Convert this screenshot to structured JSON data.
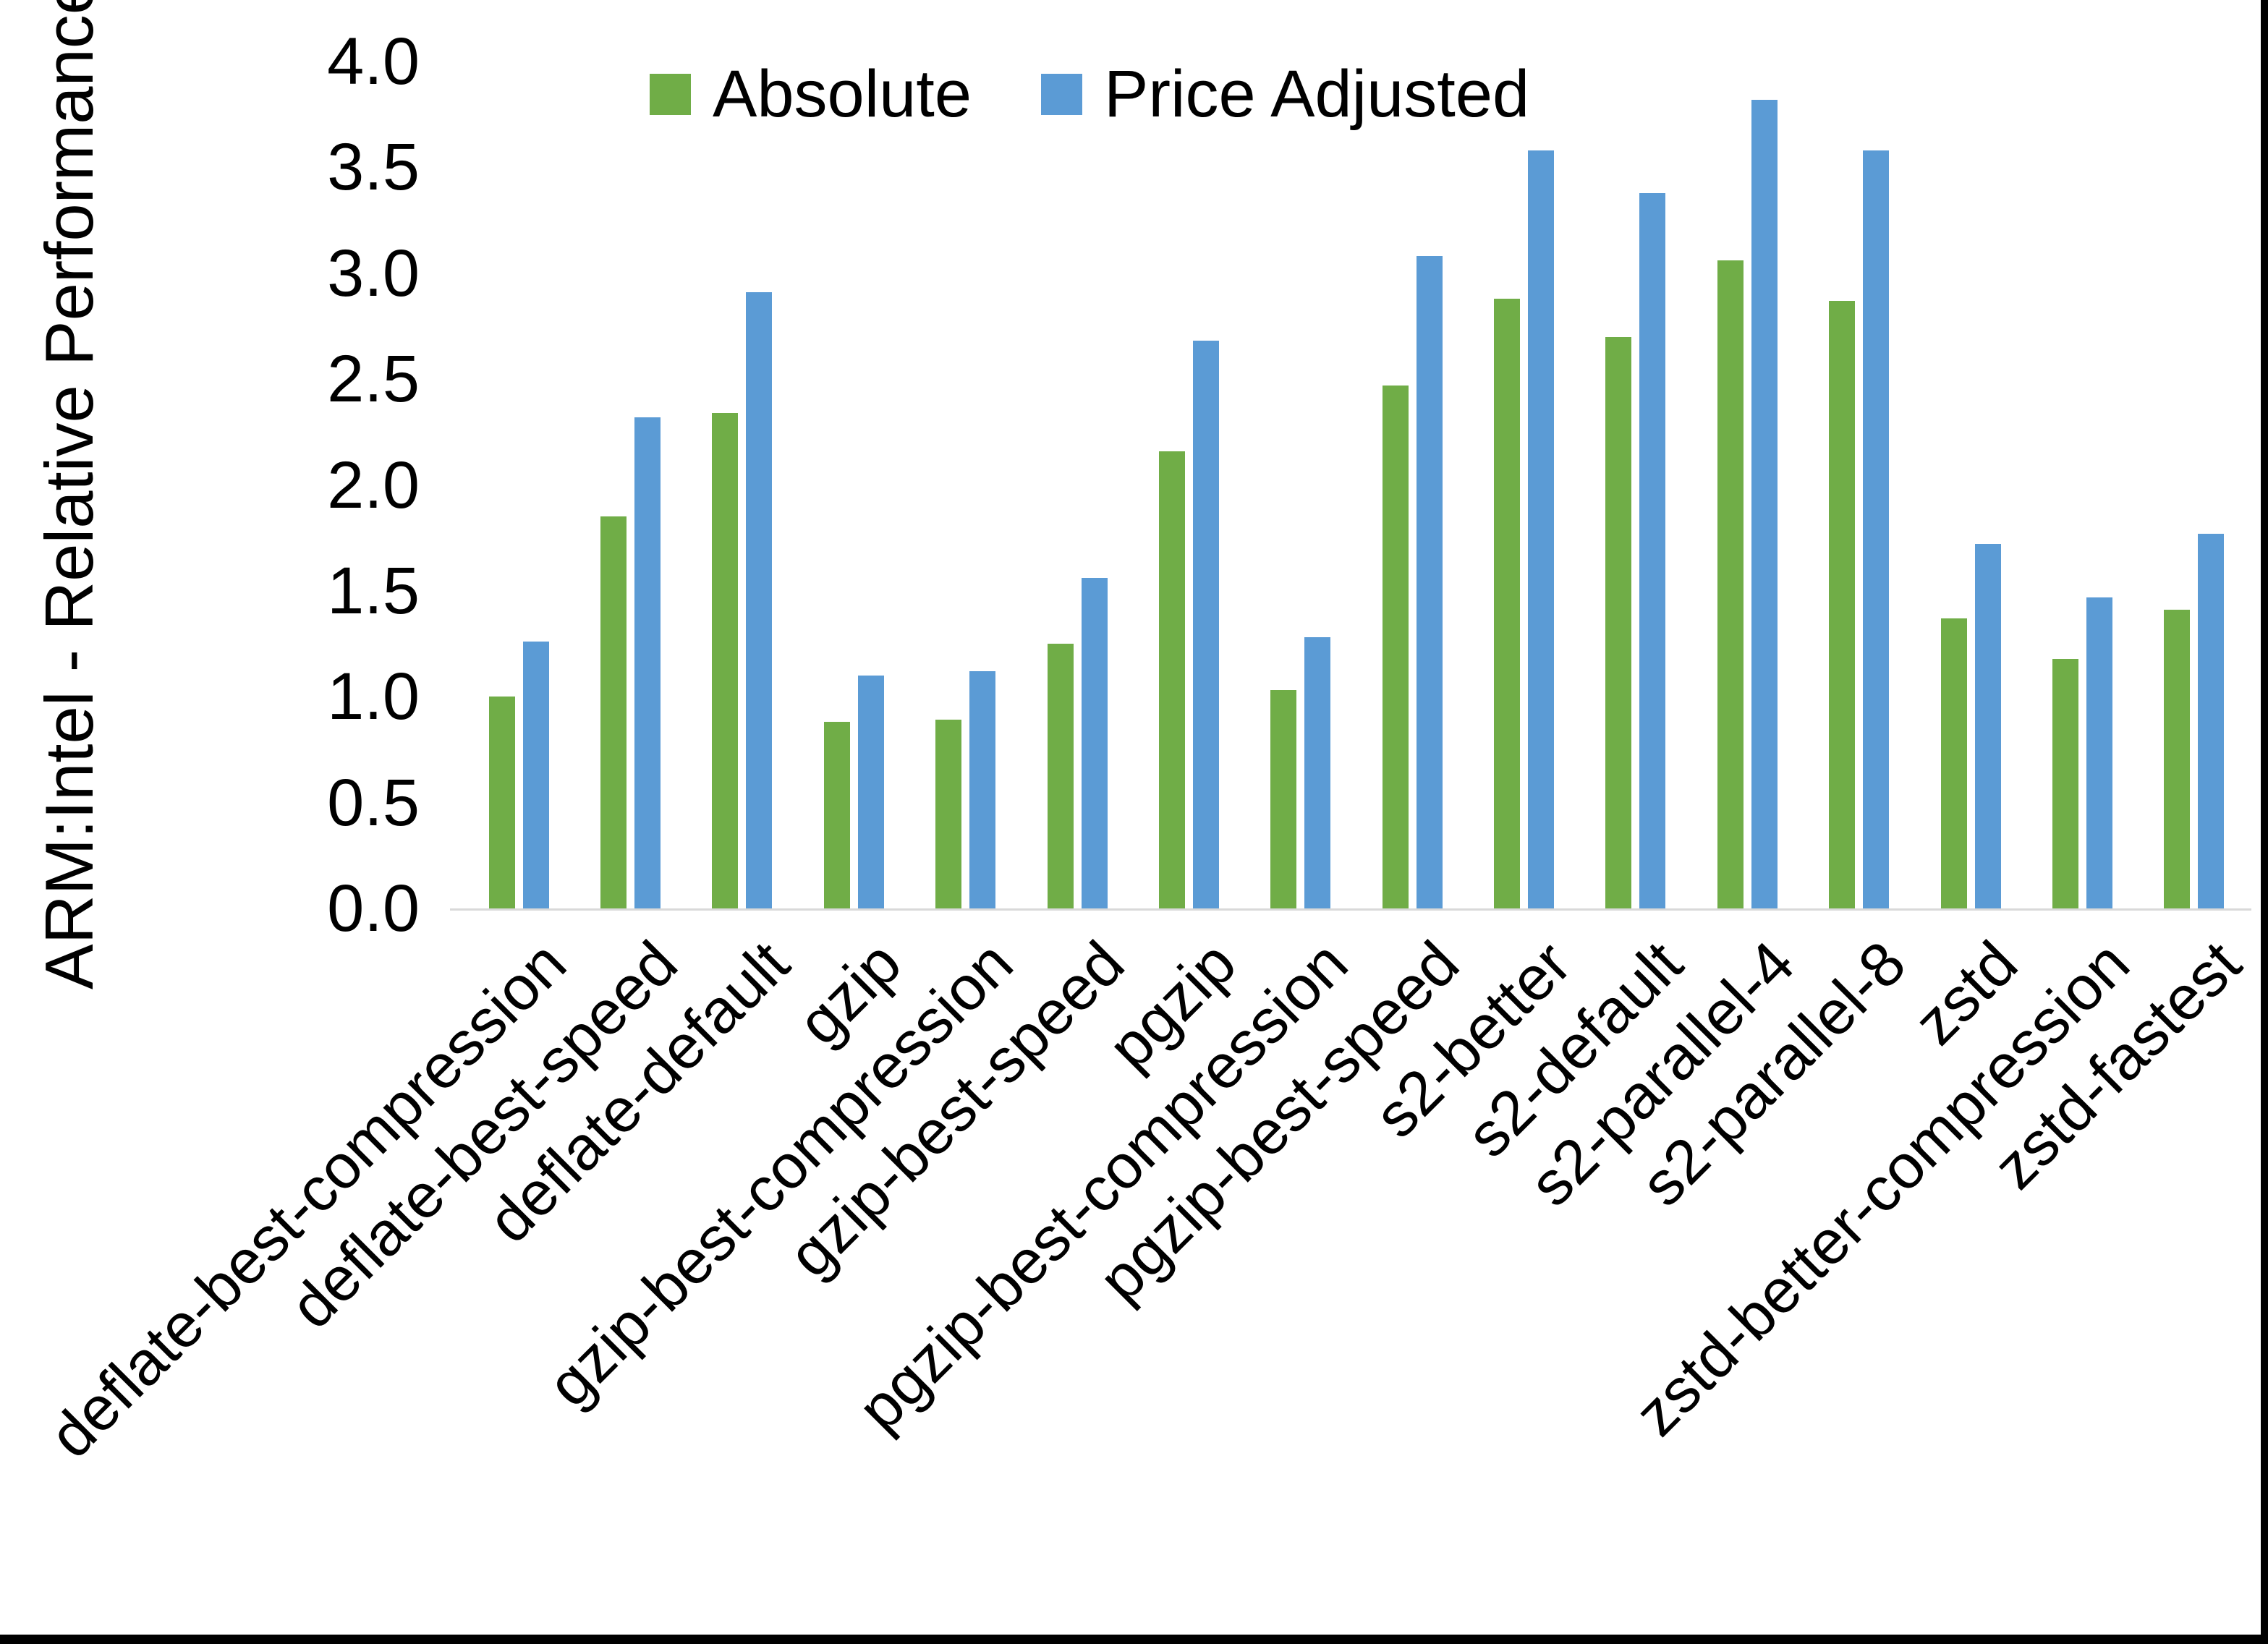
{
  "chart_data": {
    "type": "bar",
    "title": "",
    "xlabel": "",
    "ylabel": "ARM:Intel - Relative Performance",
    "ylim": [
      0,
      4
    ],
    "ytick_step": 0.5,
    "yticks": [
      "0.0",
      "0.5",
      "1.0",
      "1.5",
      "2.0",
      "2.5",
      "3.0",
      "3.5",
      "4.0"
    ],
    "grid": false,
    "legend_position": "top-center",
    "categories": [
      "deflate-best-compression",
      "deflate-best-speed",
      "deflate-default",
      "gzip",
      "gzip-best-compression",
      "gzip-best-speed",
      "pgzip",
      "pgzip-best-compression",
      "pgzip-best-speed",
      "s2-better",
      "s2-default",
      "s2-parallel-4",
      "s2-parallel-8",
      "zstd",
      "zstd-better-compression",
      "zstd-fastest"
    ],
    "series": [
      {
        "name": "Absolute",
        "color": "#70AD47",
        "values": [
          1.0,
          1.85,
          2.34,
          0.88,
          0.89,
          1.25,
          2.16,
          1.03,
          2.47,
          2.88,
          2.7,
          3.06,
          2.87,
          1.37,
          1.18,
          1.41
        ]
      },
      {
        "name": "Price Adjusted",
        "color": "#5B9BD5",
        "values": [
          1.26,
          2.32,
          2.91,
          1.1,
          1.12,
          1.56,
          2.68,
          1.28,
          3.08,
          3.58,
          3.38,
          3.82,
          3.58,
          1.72,
          1.47,
          1.77
        ]
      }
    ]
  },
  "colors": {
    "background": "#ffffff",
    "axis_line": "#d9d9d9",
    "text": "#000000",
    "frame_border": "#000000"
  }
}
